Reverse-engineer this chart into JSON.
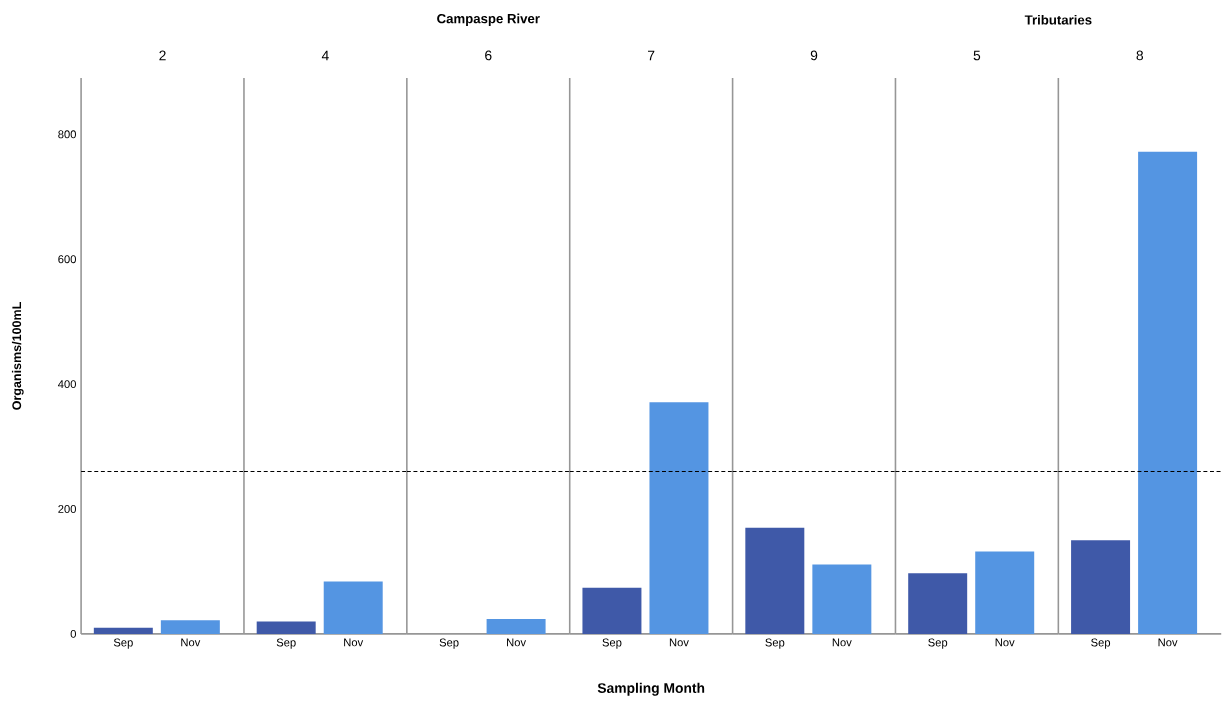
{
  "chart_data": [
    {
      "type": "bar",
      "title": "2",
      "annotations": [
        "Campaspe River"
      ],
      "ylabel": "Organisms/100mL",
      "categories": [
        "Sep",
        "Nov"
      ],
      "values": [
        10,
        22
      ],
      "colors": [
        "#3f59a8",
        "#5495e2"
      ],
      "ylim": [
        0,
        890
      ],
      "yticks": [
        0,
        200,
        400,
        600,
        800
      ],
      "ref_lines": [
        {
          "axis": "y",
          "value": 260,
          "line_style": "dashed"
        }
      ]
    },
    {
      "type": "bar",
      "title": "4",
      "categories": [
        "Sep",
        "Nov"
      ],
      "values": [
        20,
        84
      ],
      "colors": [
        "#3f59a8",
        "#5495e2"
      ],
      "ylim": [
        0,
        890
      ],
      "yticks": [
        0,
        200,
        400,
        600,
        800
      ],
      "tick_labels": "x",
      "ref_lines": [
        {
          "axis": "y",
          "value": 260,
          "line_style": "dashed"
        }
      ]
    },
    {
      "type": "bar",
      "title": "6",
      "categories": [
        "Sep",
        "Nov"
      ],
      "values": [
        0,
        24
      ],
      "colors": [
        "#3f59a8",
        "#5495e2"
      ],
      "ylim": [
        0,
        890
      ],
      "yticks": [
        0,
        200,
        400,
        600,
        800
      ],
      "tick_labels": "x",
      "ref_lines": [
        {
          "axis": "y",
          "value": 260,
          "line_style": "dashed"
        }
      ]
    },
    {
      "type": "bar",
      "title": "7",
      "xlabel": "Sampling Month",
      "categories": [
        "Sep",
        "Nov"
      ],
      "values": [
        74,
        371
      ],
      "colors": [
        "#3f59a8",
        "#5495e2"
      ],
      "ylim": [
        0,
        890
      ],
      "yticks": [
        0,
        200,
        400,
        600,
        800
      ],
      "tick_labels": "x",
      "ref_lines": [
        {
          "axis": "y",
          "value": 260,
          "line_style": "dashed"
        }
      ]
    },
    {
      "type": "bar",
      "title": "9",
      "categories": [
        "Sep",
        "Nov"
      ],
      "values": [
        170,
        111
      ],
      "colors": [
        "#3f59a8",
        "#5495e2"
      ],
      "ylim": [
        0,
        890
      ],
      "yticks": [
        0,
        200,
        400,
        600,
        800
      ],
      "tick_labels": "x",
      "ref_lines": [
        {
          "axis": "y",
          "value": 260,
          "line_style": "dashed"
        }
      ]
    },
    {
      "type": "bar",
      "title": "5",
      "annotations": [
        "Tributaries"
      ],
      "categories": [
        "Sep",
        "Nov"
      ],
      "values": [
        97,
        132
      ],
      "colors": [
        "#3f59a8",
        "#5495e2"
      ],
      "ylim": [
        0,
        890
      ],
      "yticks": [
        0,
        200,
        400,
        600,
        800
      ],
      "tick_labels": "x",
      "ref_lines": [
        {
          "axis": "y",
          "value": 260,
          "line_style": "dashed"
        }
      ]
    },
    {
      "type": "bar",
      "title": "8",
      "categories": [
        "Sep",
        "Nov"
      ],
      "values": [
        150,
        772
      ],
      "colors": [
        "#3f59a8",
        "#5495e2"
      ],
      "ylim": [
        0,
        890
      ],
      "yticks": [
        0,
        200,
        400,
        600,
        800
      ],
      "tick_labels": "x",
      "ref_lines": [
        {
          "axis": "y",
          "value": 260,
          "line_style": "dashed"
        }
      ]
    }
  ]
}
